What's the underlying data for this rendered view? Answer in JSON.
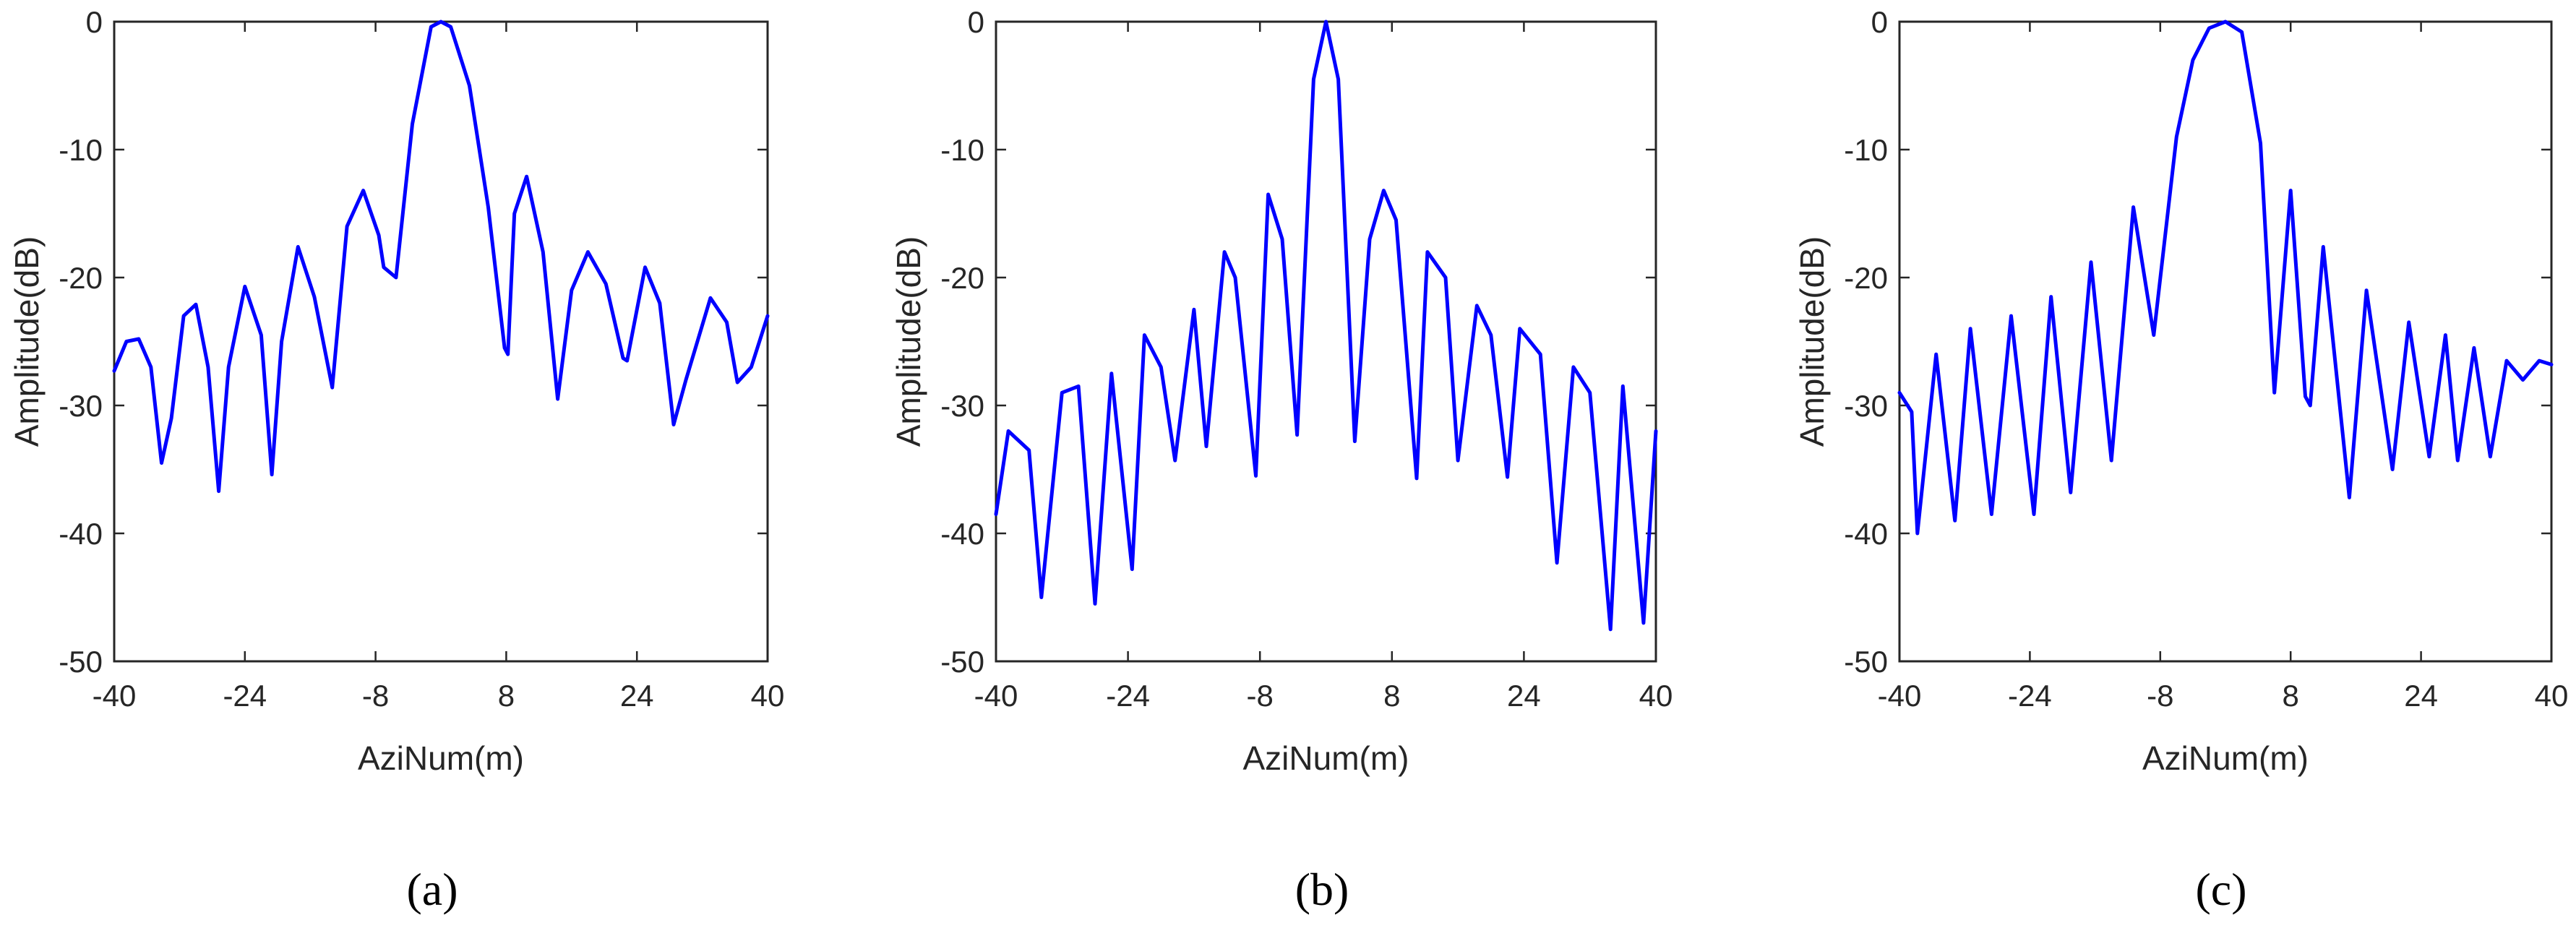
{
  "figure": {
    "colors": {
      "line": "#0000ff",
      "axis": "#262626",
      "background": "#ffffff"
    }
  },
  "chart_data": [
    {
      "type": "line",
      "caption": "(a)",
      "xlabel": "AziNum(m)",
      "ylabel": "Amplitude(dB)",
      "xlim": [
        -40,
        40
      ],
      "ylim": [
        -50,
        0
      ],
      "xticks": [
        -40,
        -24,
        -8,
        8,
        24,
        40
      ],
      "yticks": [
        0,
        -10,
        -20,
        -30,
        -40,
        -50
      ],
      "series": [
        {
          "x": [
            -40,
            -38.5,
            -37,
            -35.5,
            -34.2,
            -33,
            -31.5,
            -30,
            -28.5,
            -27.2,
            -26,
            -24,
            -22,
            -20.7,
            -19.5,
            -17.5,
            -15.5,
            -13.3,
            -11.5,
            -9.5,
            -7.6,
            -7,
            -5.5,
            -3.5,
            -1.2,
            0,
            1.2,
            3.5,
            5.8,
            7.8,
            8.2,
            9,
            10.5,
            12.5,
            14.3,
            16,
            18,
            20.2,
            22.3,
            22.8,
            25,
            26.8,
            28.5,
            30,
            33,
            35,
            36.3,
            38,
            40
          ],
          "y": [
            -27.3,
            -25,
            -24.8,
            -27,
            -34.5,
            -31,
            -23,
            -22.1,
            -27,
            -36.7,
            -27,
            -20.7,
            -24.5,
            -35.4,
            -25,
            -17.6,
            -21.5,
            -28.6,
            -16,
            -13.2,
            -16.7,
            -19.2,
            -20,
            -8,
            -0.4,
            0,
            -0.4,
            -5,
            -14.5,
            -25.5,
            -26,
            -15,
            -12.1,
            -18,
            -29.5,
            -21,
            -18,
            -20.5,
            -26.3,
            -26.5,
            -19.2,
            -22,
            -31.5,
            -28,
            -21.6,
            -23.5,
            -28.2,
            -27,
            -23
          ]
        }
      ]
    },
    {
      "type": "line",
      "caption": "(b)",
      "xlabel": "AziNum(m)",
      "ylabel": "Amplitude(dB)",
      "xlim": [
        -40,
        40
      ],
      "ylim": [
        -50,
        0
      ],
      "xticks": [
        -40,
        -24,
        -8,
        8,
        24,
        40
      ],
      "yticks": [
        0,
        -10,
        -20,
        -30,
        -40,
        -50
      ],
      "series": [
        {
          "x": [
            -40,
            -38.5,
            -36,
            -34.5,
            -32,
            -30,
            -28,
            -26,
            -23.5,
            -22,
            -20,
            -18.3,
            -16,
            -14.5,
            -12.3,
            -11,
            -8.5,
            -7,
            -5.3,
            -3.5,
            -1.5,
            0,
            1.5,
            3.5,
            5.3,
            7,
            8.5,
            11,
            12.3,
            14.5,
            16,
            18.3,
            20,
            22,
            23.5,
            26,
            28,
            30,
            32,
            34.5,
            36,
            38.5,
            40
          ],
          "y": [
            -38.5,
            -32,
            -33.5,
            -45,
            -29,
            -28.5,
            -45.5,
            -27.5,
            -42.8,
            -24.5,
            -27,
            -34.3,
            -22.5,
            -33.2,
            -18,
            -20,
            -35.5,
            -13.5,
            -17,
            -32.3,
            -4.5,
            0,
            -4.5,
            -32.8,
            -17,
            -13.2,
            -15.5,
            -35.7,
            -18,
            -20,
            -34.3,
            -22.2,
            -24.5,
            -35.6,
            -24,
            -26,
            -42.3,
            -27,
            -29,
            -47.5,
            -28.5,
            -47,
            -32
          ]
        }
      ]
    },
    {
      "type": "line",
      "caption": "(c)",
      "xlabel": "AziNum(m)",
      "ylabel": "Amplitude(dB)",
      "xlim": [
        -40,
        40
      ],
      "ylim": [
        -50,
        0
      ],
      "xticks": [
        -40,
        -24,
        -8,
        8,
        24,
        40
      ],
      "yticks": [
        0,
        -10,
        -20,
        -30,
        -40,
        -50
      ],
      "series": [
        {
          "x": [
            -40,
            -38.5,
            -37.8,
            -35.5,
            -33.2,
            -31.3,
            -28.7,
            -26.3,
            -23.5,
            -21.4,
            -19,
            -16.5,
            -14,
            -11.3,
            -8.8,
            -6,
            -4,
            -2,
            0,
            2,
            4.3,
            6,
            8,
            9.8,
            10.4,
            12,
            15.2,
            17.3,
            20.5,
            22.5,
            25,
            27,
            28.5,
            30.5,
            32.5,
            34.5,
            36.5,
            38.5,
            40
          ],
          "y": [
            -29,
            -30.5,
            -40,
            -26,
            -39,
            -24,
            -38.5,
            -23,
            -38.5,
            -21.5,
            -36.8,
            -18.8,
            -34.3,
            -14.5,
            -24.5,
            -9,
            -3,
            -0.5,
            0,
            -0.8,
            -9.5,
            -29,
            -13.2,
            -29.3,
            -30,
            -17.6,
            -37.2,
            -21,
            -35,
            -23.5,
            -34,
            -24.5,
            -34.3,
            -25.5,
            -34,
            -26.5,
            -28,
            -26.5,
            -26.8
          ]
        }
      ]
    }
  ]
}
